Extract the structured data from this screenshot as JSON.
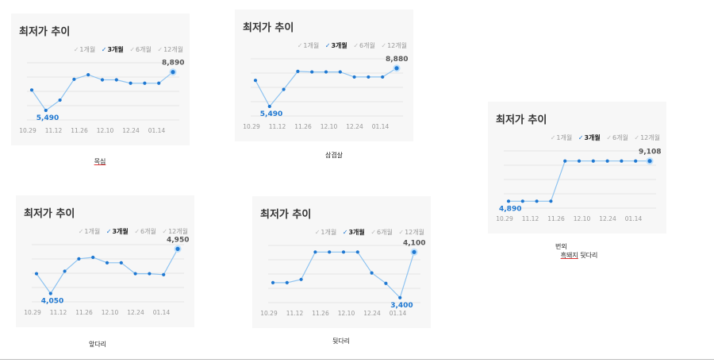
{
  "widget": {
    "title": "최저가 추이",
    "tabs": [
      {
        "label": "1개월",
        "active": false
      },
      {
        "label": "3개월",
        "active": true
      },
      {
        "label": "6개월",
        "active": false
      },
      {
        "label": "12개월",
        "active": false
      }
    ],
    "check_glyph": "✓",
    "line_color": "#8ec3f0",
    "point_color": "#1f78d1",
    "min_label_color": "#1f78d1",
    "max_label_color": "#555555"
  },
  "captions": {
    "c1": {
      "text": "목심"
    },
    "c2": {
      "text": "삼겹살"
    },
    "c3": {
      "line1": "번외",
      "line2_u": "흑돼지",
      "line2_rest": " 뒷다리"
    },
    "c4": {
      "text": "앞다리"
    },
    "c5": {
      "text": "뒷다리"
    }
  },
  "chart_data": [
    {
      "type": "line",
      "caption": "목심",
      "x": [
        "10.29",
        "11.12",
        "11.26",
        "12.10",
        "12.24",
        "01.14"
      ],
      "points": [
        7300,
        5490,
        6400,
        8250,
        8650,
        8200,
        8200,
        7900,
        7900,
        7900,
        8890
      ],
      "min_label": "5,490",
      "min_index": 1,
      "max_label": "8,890",
      "max_index": 10,
      "ylim": [
        4500,
        10000
      ]
    },
    {
      "type": "line",
      "caption": "삼겹살",
      "x": [
        "10.29",
        "11.12",
        "11.26",
        "12.10",
        "12.24",
        "01.14"
      ],
      "points": [
        7800,
        5490,
        7000,
        8600,
        8550,
        8550,
        8550,
        8100,
        8100,
        8100,
        8880
      ],
      "min_label": "5,490",
      "min_index": 1,
      "max_label": "8,880",
      "max_index": 10,
      "ylim": [
        4500,
        10000
      ]
    },
    {
      "type": "line",
      "caption": "번외 흑돼지 뒷다리",
      "x": [
        "10.29",
        "11.12",
        "11.26",
        "12.10",
        "12.24",
        "01.14"
      ],
      "points": [
        4890,
        4890,
        4890,
        4890,
        9108,
        9108,
        9108,
        9108,
        9108,
        9108,
        9108
      ],
      "min_label": "4,890",
      "min_index": 0,
      "max_label": "9,108",
      "max_index": 10,
      "ylim": [
        4000,
        10500
      ]
    },
    {
      "type": "line",
      "caption": "앞다리",
      "x": [
        "10.29",
        "11.12",
        "11.26",
        "12.10",
        "12.24",
        "01.14"
      ],
      "points": [
        4450,
        4050,
        4500,
        4750,
        4780,
        4670,
        4670,
        4450,
        4450,
        4430,
        4950
      ],
      "min_label": "4,050",
      "min_index": 1,
      "max_label": "4,950",
      "max_index": 10,
      "ylim": [
        3850,
        5100
      ]
    },
    {
      "type": "line",
      "caption": "뒷다리",
      "x": [
        "10.29",
        "11.12",
        "11.26",
        "12.10",
        "12.24",
        "01.14"
      ],
      "points": [
        3630,
        3630,
        3680,
        4100,
        4100,
        4100,
        4100,
        3780,
        3620,
        3400,
        4100
      ],
      "min_label": "3,400",
      "min_index": 9,
      "max_label": "4,100",
      "max_index": 10,
      "ylim": [
        3300,
        4250
      ]
    }
  ]
}
